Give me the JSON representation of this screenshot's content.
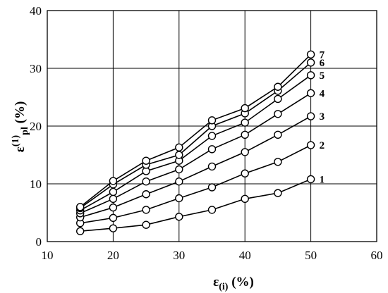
{
  "chart_data": {
    "type": "line",
    "x": [
      15,
      20,
      25,
      30,
      35,
      40,
      45,
      50
    ],
    "xlim": [
      10,
      60
    ],
    "ylim": [
      0,
      40
    ],
    "xticks": [
      "10",
      "20",
      "30",
      "40",
      "50",
      "60"
    ],
    "yticks": [
      "0",
      "10",
      "20",
      "30",
      "40"
    ],
    "xlabel": {
      "main": "ε",
      "sub": "(i)",
      "tail": " (%)"
    },
    "ylabel": {
      "main": "ε",
      "sup": "(1)",
      "sub": "pl",
      "tail": " (%)"
    },
    "grid": true,
    "series": [
      {
        "name": "1",
        "values": [
          1.8,
          2.3,
          2.9,
          4.3,
          5.5,
          7.4,
          8.4,
          10.8
        ]
      },
      {
        "name": "2",
        "values": [
          3.2,
          4.1,
          5.5,
          7.5,
          9.4,
          11.8,
          13.8,
          16.7
        ]
      },
      {
        "name": "3",
        "values": [
          4.2,
          5.9,
          8.2,
          10.4,
          13.0,
          15.5,
          18.5,
          21.7
        ]
      },
      {
        "name": "4",
        "values": [
          4.9,
          7.4,
          10.4,
          12.5,
          16.0,
          18.5,
          22.1,
          25.7
        ]
      },
      {
        "name": "5",
        "values": [
          5.4,
          8.6,
          12.2,
          14.0,
          18.3,
          20.6,
          24.7,
          28.8
        ]
      },
      {
        "name": "6",
        "values": [
          5.8,
          9.9,
          13.3,
          15.0,
          20.0,
          22.2,
          26.1,
          31.0
        ]
      },
      {
        "name": "7",
        "values": [
          6.0,
          10.5,
          14.0,
          16.3,
          21.0,
          23.1,
          26.8,
          32.4
        ]
      }
    ]
  }
}
